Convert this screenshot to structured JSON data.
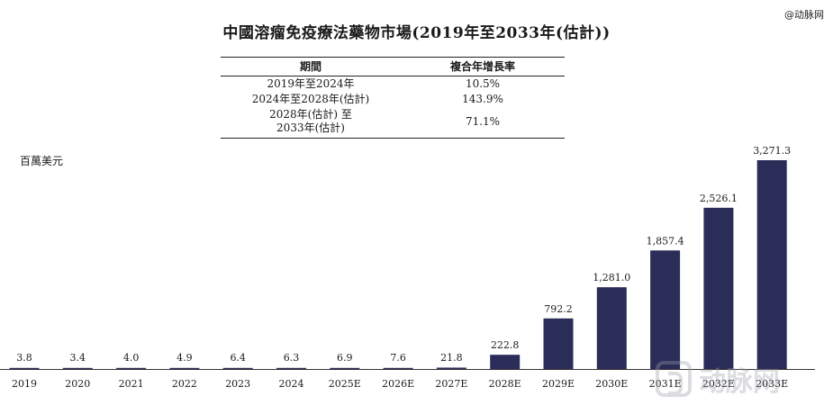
{
  "title": "中國溶瘤免疫療法藥物市場(2019年至2033年(估計))",
  "watermark_top": "@动脉网",
  "watermark_bottom": "动脉网",
  "cagr_table": {
    "headers": [
      "期間",
      "複合年增長率"
    ],
    "rows": [
      {
        "period": "2019年至2024年",
        "rate": "10.5%"
      },
      {
        "period": "2024年至2028年(估計)",
        "rate": "143.9%"
      },
      {
        "period": "2028年(估計) 至\n2033年(估計)",
        "rate": "71.1%"
      }
    ]
  },
  "unit_label": "百萬美元",
  "colors": {
    "bar": "#2b2d59",
    "text": "#1a1a1a",
    "axis": "#333333"
  },
  "chart_data": {
    "type": "bar",
    "title": "中國溶瘤免疫療法藥物市場(2019年至2033年(估計))",
    "ylabel": "百萬美元",
    "xlabel": "",
    "ylim": [
      0,
      3271.3
    ],
    "grid": false,
    "categories": [
      "2019",
      "2020",
      "2021",
      "2022",
      "2023",
      "2024",
      "2025E",
      "2026E",
      "2027E",
      "2028E",
      "2029E",
      "2030E",
      "2031E",
      "2032E",
      "2033E"
    ],
    "values": [
      3.8,
      3.4,
      4.0,
      4.9,
      6.4,
      6.3,
      6.9,
      7.6,
      21.8,
      222.8,
      792.2,
      1281.0,
      1857.4,
      2526.1,
      3271.3
    ],
    "value_labels": [
      "3.8",
      "3.4",
      "4.0",
      "4.9",
      "6.4",
      "6.3",
      "6.9",
      "7.6",
      "21.8",
      "222.8",
      "792.2",
      "1,281.0",
      "1,857.4",
      "2,526.1",
      "3,271.3"
    ]
  }
}
